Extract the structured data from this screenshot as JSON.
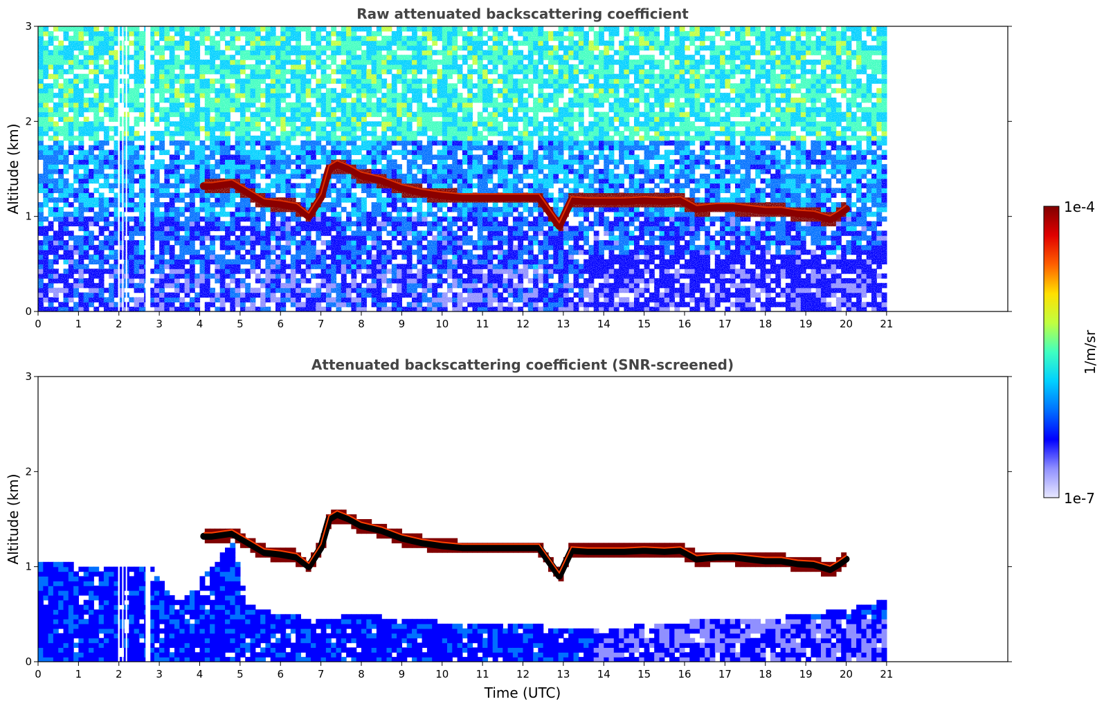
{
  "chart_data": [
    {
      "type": "heatmap",
      "title": "Raw attenuated backscattering coefficient",
      "xlabel": "",
      "ylabel": "Altitude (km)",
      "xlim": [
        0,
        24
      ],
      "ylim": [
        0,
        3
      ],
      "x_ticks": [
        "0",
        "1",
        "2",
        "3",
        "4",
        "5",
        "6",
        "7",
        "8",
        "9",
        "10",
        "11",
        "12",
        "13",
        "14",
        "15",
        "16",
        "17",
        "18",
        "19",
        "20",
        "21"
      ],
      "y_ticks": [
        "0",
        "1",
        "2",
        "3"
      ],
      "data_extent_x": [
        0,
        21
      ],
      "gaps_x": [
        [
          1.98,
          2.02
        ],
        [
          2.08,
          2.11
        ],
        [
          2.17,
          2.2
        ],
        [
          2.66,
          2.78
        ]
      ],
      "layer_altitude_km": {
        "x": [
          4.1,
          4.3,
          4.8,
          5.2,
          5.6,
          6.0,
          6.4,
          6.7,
          7.0,
          7.2,
          7.4,
          7.7,
          8.0,
          8.5,
          9.0,
          9.5,
          10.0,
          10.5,
          11.0,
          11.5,
          12.0,
          12.4,
          12.9,
          13.2,
          13.6,
          14.0,
          14.5,
          15.0,
          15.5,
          15.9,
          16.3,
          16.8,
          17.2,
          17.6,
          18.0,
          18.4,
          18.8,
          19.2,
          19.6,
          19.8,
          20.0
        ],
        "y": [
          1.32,
          1.32,
          1.35,
          1.25,
          1.15,
          1.13,
          1.1,
          1.0,
          1.2,
          1.5,
          1.55,
          1.5,
          1.43,
          1.38,
          1.3,
          1.25,
          1.22,
          1.2,
          1.2,
          1.2,
          1.2,
          1.2,
          0.9,
          1.17,
          1.16,
          1.16,
          1.16,
          1.17,
          1.16,
          1.17,
          1.08,
          1.1,
          1.1,
          1.08,
          1.06,
          1.06,
          1.03,
          1.02,
          0.97,
          1.02,
          1.08
        ]
      }
    },
    {
      "type": "heatmap",
      "title": "Attenuated backscattering coefficient (SNR-screened)",
      "xlabel": "Time (UTC)",
      "ylabel": "Altitude (km)",
      "xlim": [
        0,
        24
      ],
      "ylim": [
        0,
        3
      ],
      "x_ticks": [
        "0",
        "1",
        "2",
        "3",
        "4",
        "5",
        "6",
        "7",
        "8",
        "9",
        "10",
        "11",
        "12",
        "13",
        "14",
        "15",
        "16",
        "17",
        "18",
        "19",
        "20",
        "21"
      ],
      "y_ticks": [
        "0",
        "1",
        "2",
        "3"
      ],
      "data_extent_x": [
        0,
        21
      ],
      "gaps_x": [
        [
          1.98,
          2.02
        ],
        [
          2.08,
          2.11
        ],
        [
          2.17,
          2.2
        ],
        [
          2.66,
          2.78
        ]
      ],
      "boundary_layer_top_km": {
        "x": [
          0,
          1,
          2,
          2.8,
          3.2,
          3.6,
          4.0,
          4.5,
          4.8,
          5.2,
          6.0,
          7.0,
          8.0,
          9.0,
          10.0,
          11.0,
          12.0,
          13.0,
          14.0,
          15.0,
          16.0,
          17.0,
          18.0,
          19.0,
          20.0,
          21.0
        ],
        "y": [
          1.05,
          1.02,
          1.0,
          1.0,
          0.75,
          0.65,
          0.85,
          1.1,
          1.25,
          0.6,
          0.5,
          0.45,
          0.5,
          0.45,
          0.42,
          0.4,
          0.4,
          0.35,
          0.32,
          0.4,
          0.42,
          0.45,
          0.45,
          0.5,
          0.55,
          0.65
        ]
      },
      "layer_altitude_km": {
        "x": [
          4.1,
          4.3,
          4.8,
          5.2,
          5.6,
          6.0,
          6.4,
          6.7,
          7.0,
          7.2,
          7.4,
          7.7,
          8.0,
          8.5,
          9.0,
          9.5,
          10.0,
          10.5,
          11.0,
          11.5,
          12.0,
          12.4,
          12.9,
          13.2,
          13.6,
          14.0,
          14.5,
          15.0,
          15.5,
          15.9,
          16.3,
          16.8,
          17.2,
          17.6,
          18.0,
          18.4,
          18.8,
          19.2,
          19.6,
          19.8,
          20.0
        ],
        "y": [
          1.32,
          1.32,
          1.35,
          1.25,
          1.15,
          1.13,
          1.1,
          1.0,
          1.2,
          1.5,
          1.55,
          1.5,
          1.43,
          1.38,
          1.3,
          1.25,
          1.22,
          1.2,
          1.2,
          1.2,
          1.2,
          1.2,
          0.9,
          1.17,
          1.16,
          1.16,
          1.16,
          1.17,
          1.16,
          1.17,
          1.08,
          1.1,
          1.1,
          1.08,
          1.06,
          1.06,
          1.03,
          1.02,
          0.97,
          1.02,
          1.08
        ]
      }
    }
  ],
  "colorbar": {
    "label": "1/m/sr",
    "max_label": "1e-4",
    "min_label": "1e-7",
    "scale": "log",
    "range": [
      1e-07,
      0.0001
    ],
    "colors": [
      "#e8e8ff",
      "#9090ff",
      "#0000ff",
      "#0070ff",
      "#00d0ff",
      "#40ffc0",
      "#c0ff40",
      "#ffe000",
      "#ff6000",
      "#e00000",
      "#800000"
    ]
  }
}
